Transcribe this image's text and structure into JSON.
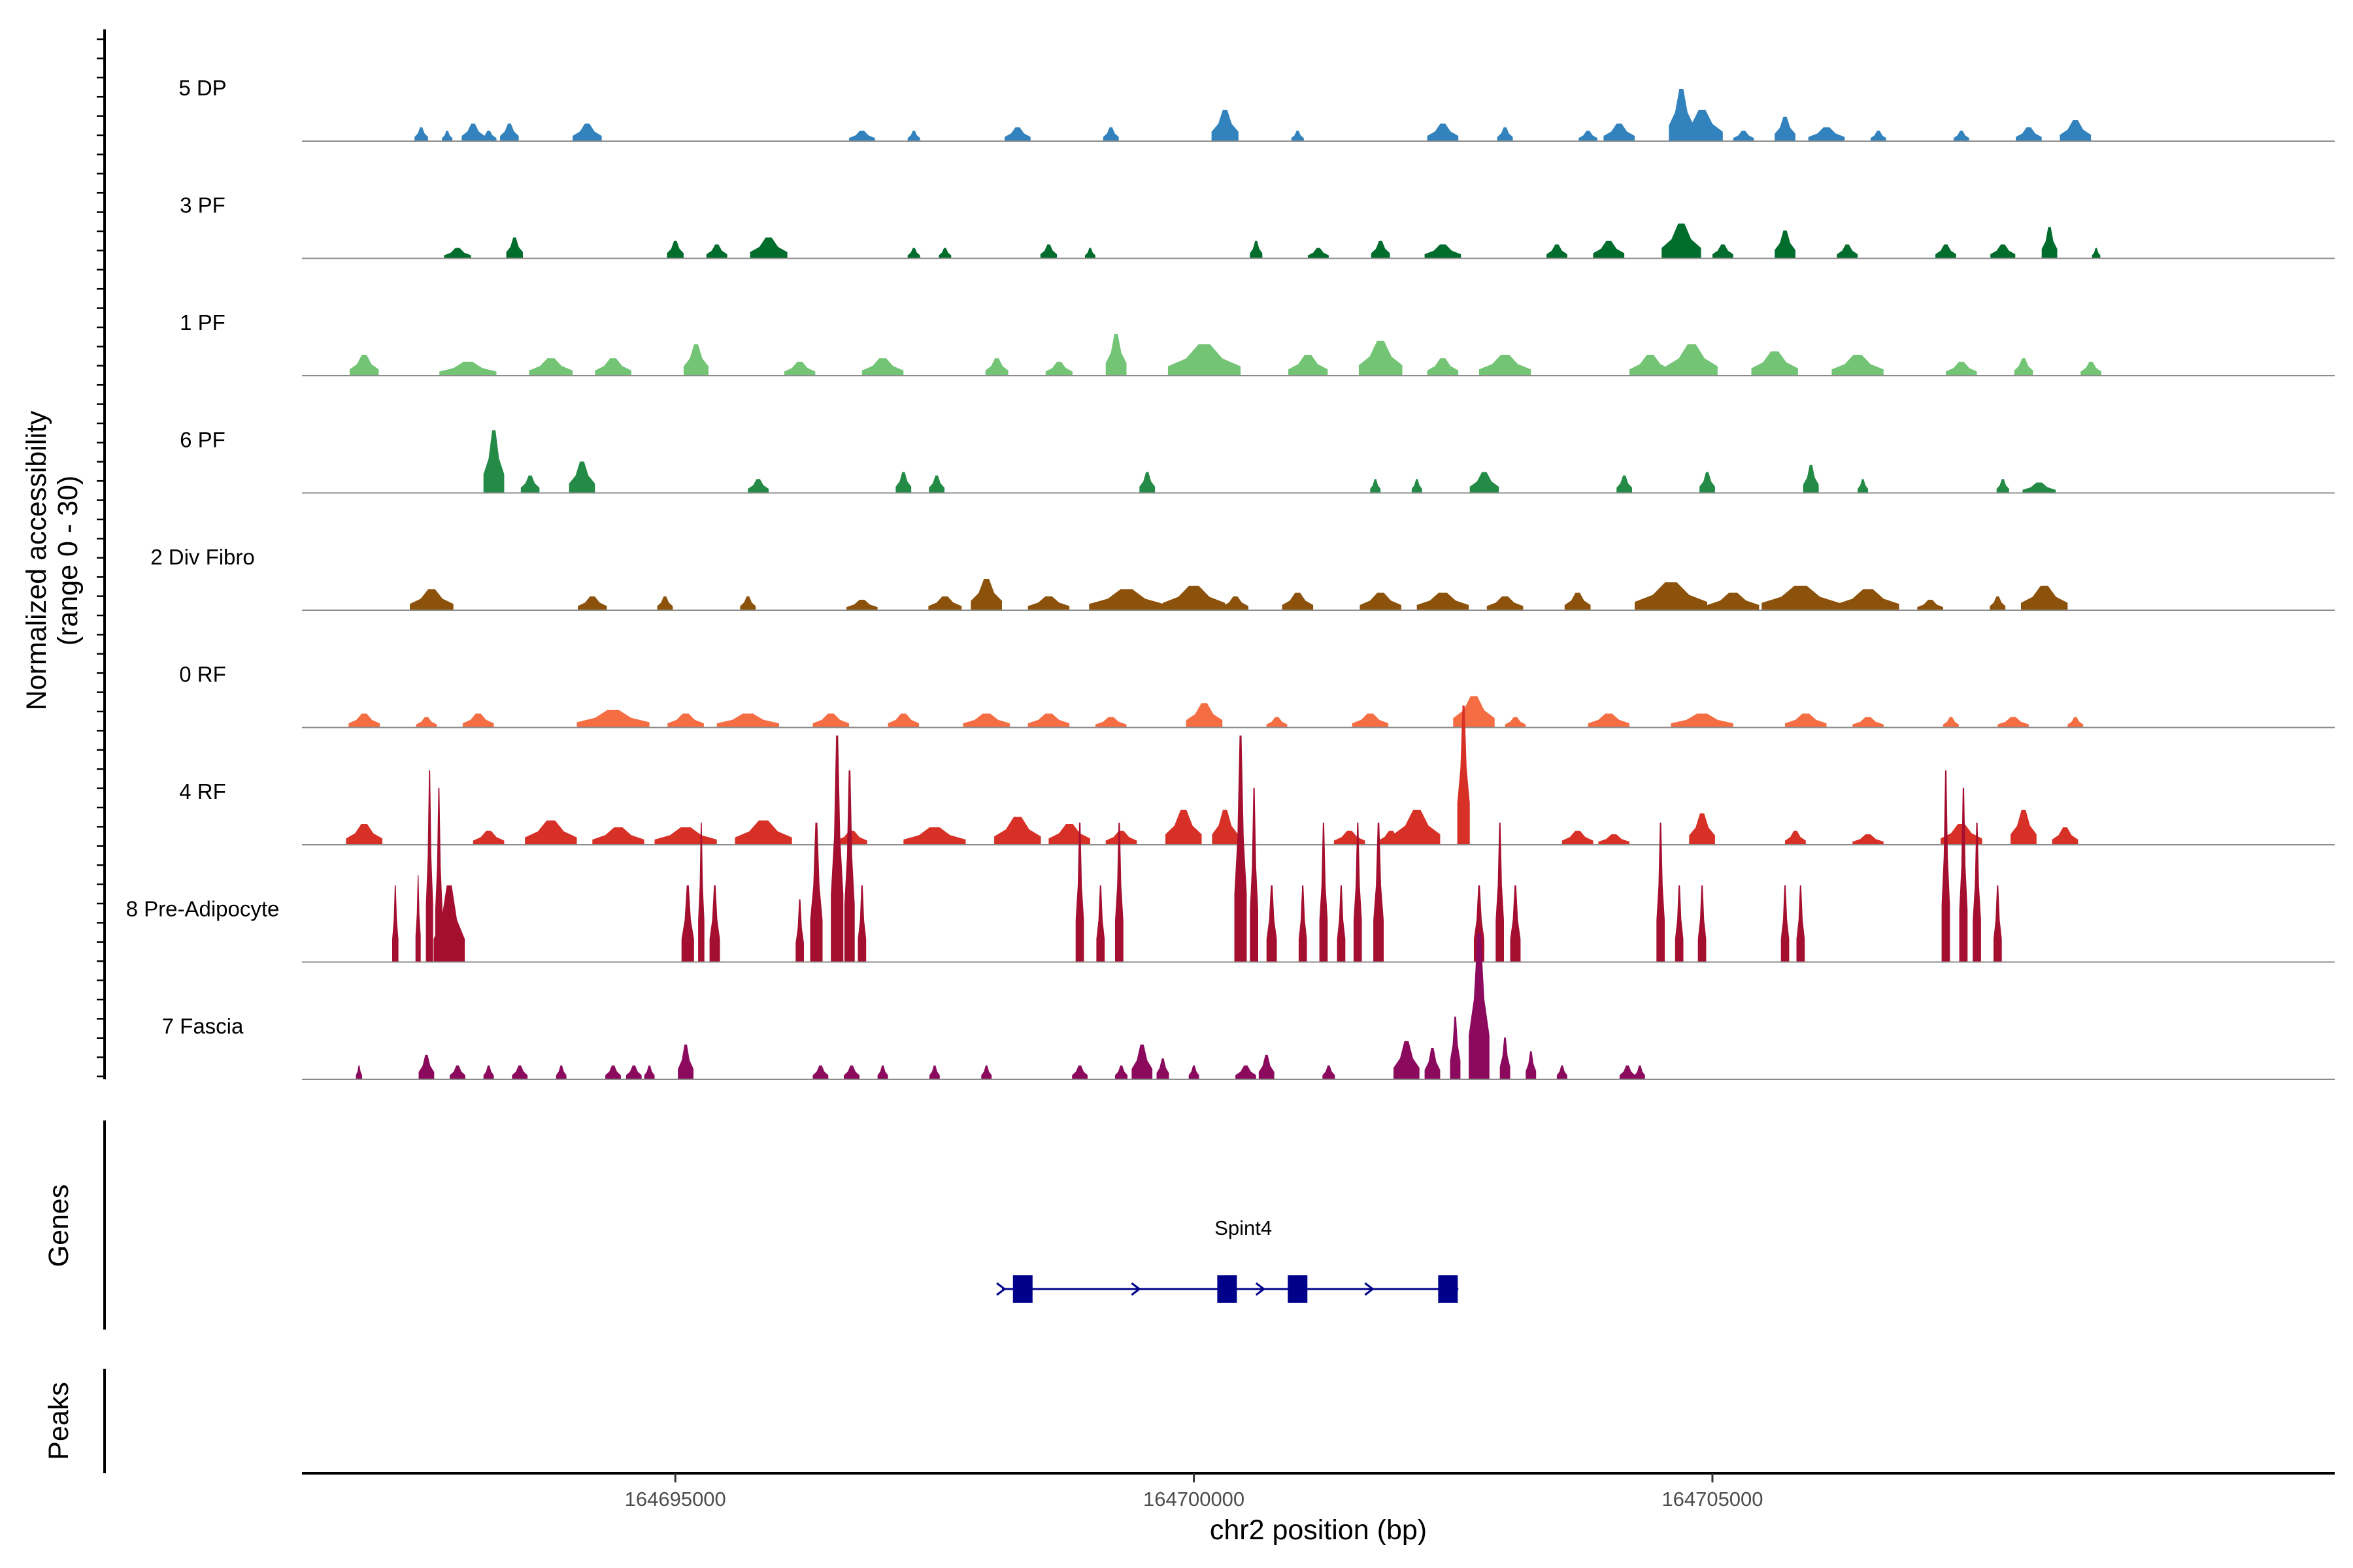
{
  "chart_data": {
    "type": "area",
    "y_axis_label_line1": "Normalized accessibility",
    "y_axis_label_line2": "(range 0 - 30)",
    "ylim": [
      0,
      30
    ],
    "x_axis_label": "chr2 position (bp)",
    "x_range": [
      164691400,
      164711000
    ],
    "x_ticks": [
      164695000,
      164700000,
      164705000
    ],
    "x_tick_labels": [
      "164695000",
      "164700000",
      "164705000"
    ],
    "tracks": [
      {
        "name": "5 DP",
        "color": "#3182bd",
        "peaks": [
          [
            164692550,
            130,
            4
          ],
          [
            164692800,
            100,
            3
          ],
          [
            164693050,
            220,
            5
          ],
          [
            164693200,
            150,
            3
          ],
          [
            164693400,
            180,
            5
          ],
          [
            164694150,
            280,
            5
          ],
          [
            164696800,
            250,
            3
          ],
          [
            164697300,
            120,
            3
          ],
          [
            164698300,
            250,
            4
          ],
          [
            164699200,
            150,
            4
          ],
          [
            164700300,
            260,
            9
          ],
          [
            164701000,
            120,
            3
          ],
          [
            164702400,
            300,
            5
          ],
          [
            164703000,
            150,
            4
          ],
          [
            164703800,
            180,
            3
          ],
          [
            164704100,
            300,
            5
          ],
          [
            164704700,
            240,
            15
          ],
          [
            164704900,
            400,
            9
          ],
          [
            164705300,
            200,
            3
          ],
          [
            164705700,
            200,
            7
          ],
          [
            164706100,
            350,
            4
          ],
          [
            164706600,
            150,
            3
          ],
          [
            164707400,
            150,
            3
          ],
          [
            164708050,
            250,
            4
          ],
          [
            164708500,
            300,
            6
          ]
        ]
      },
      {
        "name": "3 PF",
        "color": "#006d2c",
        "peaks": [
          [
            164692900,
            260,
            3
          ],
          [
            164693450,
            160,
            6
          ],
          [
            164695000,
            160,
            5
          ],
          [
            164695400,
            200,
            4
          ],
          [
            164695900,
            360,
            6
          ],
          [
            164697300,
            120,
            3
          ],
          [
            164697600,
            120,
            3
          ],
          [
            164698600,
            160,
            4
          ],
          [
            164699000,
            100,
            3
          ],
          [
            164700600,
            120,
            5
          ],
          [
            164701200,
            200,
            3
          ],
          [
            164701800,
            180,
            5
          ],
          [
            164702400,
            350,
            4
          ],
          [
            164703500,
            200,
            4
          ],
          [
            164704000,
            300,
            5
          ],
          [
            164704700,
            380,
            10
          ],
          [
            164705100,
            200,
            4
          ],
          [
            164705700,
            200,
            8
          ],
          [
            164706300,
            200,
            4
          ],
          [
            164707250,
            200,
            4
          ],
          [
            164707800,
            240,
            4
          ],
          [
            164708250,
            150,
            9
          ],
          [
            164708700,
            80,
            3
          ]
        ]
      },
      {
        "name": "1 PF",
        "color": "#74c476",
        "peaks": [
          [
            164692000,
            280,
            6
          ],
          [
            164693000,
            550,
            4
          ],
          [
            164693800,
            420,
            5
          ],
          [
            164694400,
            350,
            5
          ],
          [
            164695200,
            240,
            9
          ],
          [
            164696200,
            300,
            4
          ],
          [
            164697000,
            400,
            5
          ],
          [
            164698100,
            220,
            5
          ],
          [
            164698700,
            260,
            4
          ],
          [
            164699250,
            200,
            12
          ],
          [
            164700100,
            700,
            9
          ],
          [
            164701100,
            380,
            6
          ],
          [
            164701800,
            420,
            10
          ],
          [
            164702400,
            300,
            5
          ],
          [
            164703000,
            500,
            6
          ],
          [
            164704400,
            400,
            6
          ],
          [
            164704800,
            500,
            9
          ],
          [
            164705600,
            450,
            7
          ],
          [
            164706400,
            500,
            6
          ],
          [
            164707400,
            300,
            4
          ],
          [
            164708000,
            180,
            5
          ],
          [
            164708650,
            200,
            4
          ]
        ]
      },
      {
        "name": "6 PF",
        "color": "#238b45",
        "peaks": [
          [
            164693250,
            200,
            18
          ],
          [
            164693600,
            180,
            5
          ],
          [
            164694100,
            250,
            9
          ],
          [
            164695800,
            200,
            4
          ],
          [
            164697200,
            150,
            6
          ],
          [
            164697520,
            150,
            5
          ],
          [
            164699550,
            150,
            6
          ],
          [
            164701750,
            100,
            4
          ],
          [
            164702150,
            100,
            4
          ],
          [
            164702800,
            280,
            6
          ],
          [
            164704150,
            150,
            5
          ],
          [
            164704950,
            150,
            6
          ],
          [
            164705950,
            150,
            8
          ],
          [
            164706450,
            100,
            4
          ],
          [
            164707800,
            120,
            4
          ],
          [
            164708150,
            320,
            3
          ]
        ]
      },
      {
        "name": "2 Div Fibro",
        "color": "#8c510a",
        "peaks": [
          [
            164692650,
            420,
            6
          ],
          [
            164694200,
            280,
            4
          ],
          [
            164694900,
            150,
            4
          ],
          [
            164695700,
            150,
            4
          ],
          [
            164696800,
            300,
            3
          ],
          [
            164697600,
            320,
            4
          ],
          [
            164698000,
            300,
            9
          ],
          [
            164698600,
            400,
            4
          ],
          [
            164699350,
            720,
            6
          ],
          [
            164700000,
            600,
            7
          ],
          [
            164700400,
            250,
            4
          ],
          [
            164701000,
            300,
            5
          ],
          [
            164701800,
            400,
            5
          ],
          [
            164702400,
            500,
            5
          ],
          [
            164703000,
            350,
            4
          ],
          [
            164703700,
            250,
            5
          ],
          [
            164704600,
            700,
            8
          ],
          [
            164705200,
            500,
            5
          ],
          [
            164705850,
            750,
            7
          ],
          [
            164706500,
            600,
            6
          ],
          [
            164707100,
            250,
            3
          ],
          [
            164707750,
            150,
            4
          ],
          [
            164708200,
            450,
            7
          ]
        ]
      },
      {
        "name": "0 RF",
        "color": "#f46d43",
        "peaks": [
          [
            164692000,
            300,
            4
          ],
          [
            164692600,
            200,
            3
          ],
          [
            164693100,
            300,
            4
          ],
          [
            164694400,
            700,
            5
          ],
          [
            164695100,
            350,
            4
          ],
          [
            164695700,
            600,
            4
          ],
          [
            164696500,
            350,
            4
          ],
          [
            164697200,
            300,
            4
          ],
          [
            164698000,
            450,
            4
          ],
          [
            164698600,
            400,
            4
          ],
          [
            164699200,
            300,
            3
          ],
          [
            164700100,
            350,
            7
          ],
          [
            164700800,
            200,
            3
          ],
          [
            164701700,
            350,
            4
          ],
          [
            164702700,
            400,
            9
          ],
          [
            164703100,
            200,
            3
          ],
          [
            164704000,
            400,
            4
          ],
          [
            164704900,
            600,
            4
          ],
          [
            164705900,
            400,
            4
          ],
          [
            164706500,
            300,
            3
          ],
          [
            164707300,
            150,
            3
          ],
          [
            164707900,
            300,
            3
          ],
          [
            164708500,
            150,
            3
          ]
        ]
      },
      {
        "name": "4 RF",
        "color": "#d73027",
        "peaks": [
          [
            164692000,
            350,
            6
          ],
          [
            164693200,
            300,
            4
          ],
          [
            164693800,
            500,
            7
          ],
          [
            164694450,
            500,
            5
          ],
          [
            164695100,
            600,
            5
          ],
          [
            164695850,
            550,
            7
          ],
          [
            164696700,
            300,
            4
          ],
          [
            164697500,
            600,
            5
          ],
          [
            164698300,
            450,
            8
          ],
          [
            164698800,
            400,
            6
          ],
          [
            164699300,
            300,
            4
          ],
          [
            164699900,
            350,
            10
          ],
          [
            164700300,
            250,
            10
          ],
          [
            164701500,
            300,
            4
          ],
          [
            164701900,
            250,
            4
          ],
          [
            164702150,
            450,
            10
          ],
          [
            164702600,
            120,
            40
          ],
          [
            164703700,
            300,
            4
          ],
          [
            164704050,
            300,
            3
          ],
          [
            164704900,
            250,
            9
          ],
          [
            164705800,
            200,
            4
          ],
          [
            164706500,
            300,
            3
          ],
          [
            164707400,
            400,
            6
          ],
          [
            164708000,
            250,
            10
          ],
          [
            164708400,
            250,
            5
          ]
        ]
      },
      {
        "name": "8 Pre-Adipocyte",
        "color": "#a50f2f",
        "peaks": [
          [
            164692300,
            60,
            22
          ],
          [
            164692520,
            50,
            25
          ],
          [
            164692630,
            70,
            55
          ],
          [
            164692720,
            70,
            50
          ],
          [
            164692820,
            300,
            22
          ],
          [
            164695120,
            120,
            22
          ],
          [
            164695250,
            60,
            40
          ],
          [
            164695380,
            100,
            22
          ],
          [
            164696200,
            80,
            18
          ],
          [
            164696360,
            120,
            40
          ],
          [
            164696560,
            120,
            65
          ],
          [
            164696680,
            100,
            55
          ],
          [
            164696800,
            80,
            22
          ],
          [
            164698900,
            80,
            40
          ],
          [
            164699100,
            80,
            22
          ],
          [
            164699280,
            80,
            40
          ],
          [
            164700450,
            120,
            65
          ],
          [
            164700580,
            80,
            50
          ],
          [
            164700750,
            100,
            22
          ],
          [
            164701050,
            80,
            22
          ],
          [
            164701250,
            80,
            40
          ],
          [
            164701420,
            80,
            22
          ],
          [
            164701580,
            80,
            40
          ],
          [
            164701780,
            100,
            40
          ],
          [
            164702750,
            100,
            22
          ],
          [
            164702950,
            80,
            40
          ],
          [
            164703100,
            100,
            22
          ],
          [
            164704500,
            80,
            40
          ],
          [
            164704680,
            80,
            22
          ],
          [
            164704900,
            80,
            22
          ],
          [
            164705700,
            80,
            22
          ],
          [
            164705850,
            80,
            22
          ],
          [
            164707250,
            80,
            55
          ],
          [
            164707420,
            80,
            50
          ],
          [
            164707550,
            80,
            40
          ],
          [
            164707750,
            80,
            22
          ]
        ]
      },
      {
        "name": "7 Fascia",
        "color": "#8c0a5e",
        "peaks": [
          [
            164691950,
            60,
            4
          ],
          [
            164692600,
            150,
            7
          ],
          [
            164692900,
            150,
            4
          ],
          [
            164693200,
            100,
            4
          ],
          [
            164693500,
            150,
            4
          ],
          [
            164693900,
            100,
            4
          ],
          [
            164694400,
            150,
            4
          ],
          [
            164694600,
            150,
            4
          ],
          [
            164694750,
            100,
            4
          ],
          [
            164695100,
            150,
            10
          ],
          [
            164696400,
            150,
            4
          ],
          [
            164696700,
            150,
            4
          ],
          [
            164697000,
            100,
            4
          ],
          [
            164697500,
            100,
            4
          ],
          [
            164698000,
            100,
            4
          ],
          [
            164698900,
            150,
            4
          ],
          [
            164699300,
            120,
            4
          ],
          [
            164699500,
            200,
            10
          ],
          [
            164699700,
            120,
            6
          ],
          [
            164700000,
            100,
            4
          ],
          [
            164700500,
            200,
            4
          ],
          [
            164700700,
            150,
            7
          ],
          [
            164701300,
            120,
            4
          ],
          [
            164702050,
            250,
            11
          ],
          [
            164702300,
            150,
            9
          ],
          [
            164702520,
            100,
            18
          ],
          [
            164702750,
            200,
            42
          ],
          [
            164703000,
            100,
            12
          ],
          [
            164703250,
            100,
            8
          ],
          [
            164703550,
            100,
            4
          ],
          [
            164704180,
            150,
            4
          ],
          [
            164704300,
            100,
            4
          ]
        ]
      }
    ],
    "gene": {
      "name": "Spint4",
      "color": "#00008b",
      "start": 164698150,
      "end": 164702550,
      "exons": [
        164698350,
        164700320,
        164701000,
        164702450
      ],
      "arrows": [
        164698150,
        164699450,
        164700650,
        164701700
      ]
    },
    "row_titles": {
      "genes": "Genes",
      "peaks": "Peaks"
    }
  }
}
